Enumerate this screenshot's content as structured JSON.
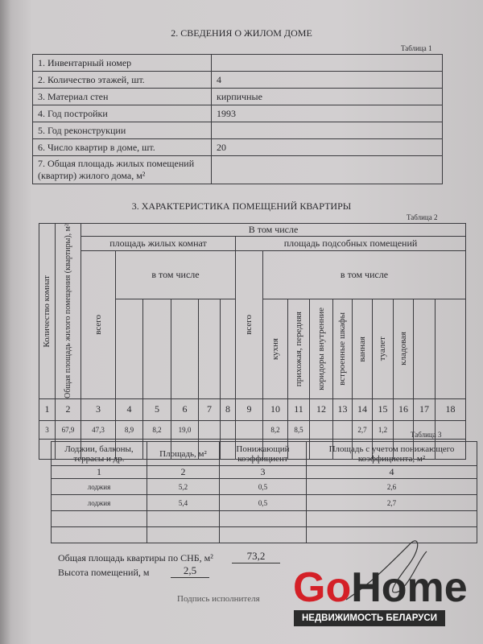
{
  "section2": {
    "title": "2. СВЕДЕНИЯ О ЖИЛОМ ДОМЕ",
    "table_label": "Таблица 1",
    "rows": [
      {
        "label": "1. Инвентарный номер",
        "value": ""
      },
      {
        "label": "2. Количество этажей, шт.",
        "value": "4"
      },
      {
        "label": "3. Материал стен",
        "value": "кирпичные"
      },
      {
        "label": "4. Год постройки",
        "value": "1993"
      },
      {
        "label": "5. Год реконструкции",
        "value": ""
      },
      {
        "label": "6. Число квартир в доме, шт.",
        "value": "20"
      },
      {
        "label": "7. Общая площадь жилых помещений (квартир) жилого дома, м²",
        "value": ""
      }
    ]
  },
  "section3": {
    "title": "3. ХАРАКТЕРИСТИКА ПОМЕЩЕНИЙ КВАРТИРЫ",
    "table_label": "Таблица 2",
    "h_rooms": "Количество комнат",
    "h_total": "Общая площадь жилого помещения (квартиры), м²",
    "h_incl": "В том числе",
    "h_living": "площадь жилых комнат",
    "h_aux": "площадь подсобных помещений",
    "h_incl_sub": "в том числе",
    "h_all": "всего",
    "aux_cols": [
      "кухня",
      "прихожая, передняя",
      "коридоры внутренние",
      "встроенные шкафы",
      "ванная",
      "туалет",
      "кладовая",
      "",
      ""
    ],
    "col_numbers": [
      "1",
      "2",
      "3",
      "4",
      "5",
      "6",
      "7",
      "8",
      "9",
      "10",
      "11",
      "12",
      "13",
      "14",
      "15",
      "16",
      "17",
      "18"
    ],
    "data_row": [
      "3",
      "67,9",
      "47,3",
      "8,9",
      "8,2",
      "19,0",
      "",
      "",
      "",
      "8,2",
      "8,5",
      "",
      "",
      "2,7",
      "1,2",
      "",
      "",
      ""
    ]
  },
  "table3": {
    "table_label": "Таблица 3",
    "headers": [
      "Лоджии, балконы, террасы и др.",
      "Площадь, м²",
      "Понижающий коэффициент",
      "Площадь с учетом понижающего коэффициента, м²"
    ],
    "col_numbers": [
      "1",
      "2",
      "3",
      "4"
    ],
    "rows": [
      [
        "лоджия",
        "5,2",
        "0,5",
        "2,6"
      ],
      [
        "лоджия",
        "5,4",
        "0,5",
        "2,7"
      ]
    ]
  },
  "totals": {
    "area_label": "Общая площадь квартиры по СНБ, м²",
    "area_value": "73,2",
    "height_label": "Высота помещений, м",
    "height_value": "2,5",
    "signature_label": "Подпись исполнителя"
  },
  "watermark": {
    "brand_go": "Go",
    "brand_home": "Home",
    "tagline": "НЕДВИЖИМОСТЬ БЕЛАРУСИ",
    "go_color": "#d42027",
    "home_color": "#2b2b2b"
  }
}
